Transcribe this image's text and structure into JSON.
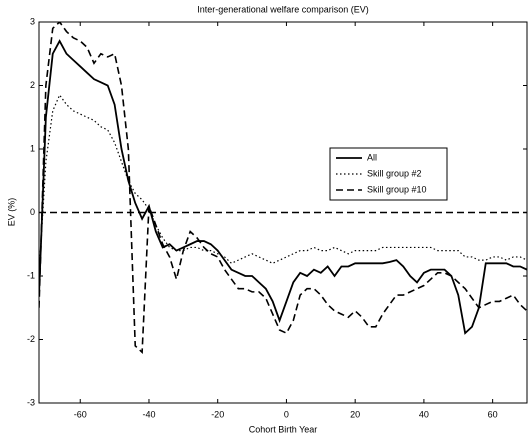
{
  "chart_data": {
    "type": "line",
    "title": "Inter-generational welfare comparison (EV)",
    "xlabel": "Cohort Birth Year",
    "ylabel": "EV (%)",
    "x": [
      -72,
      -70,
      -68,
      -66,
      -64,
      -62,
      -60,
      -58,
      -56,
      -54,
      -52,
      -50,
      -48,
      -46,
      -44,
      -42,
      -40,
      -38,
      -36,
      -34,
      -32,
      -30,
      -28,
      -26,
      -24,
      -22,
      -20,
      -18,
      -16,
      -14,
      -12,
      -10,
      -8,
      -6,
      -4,
      -2,
      0,
      2,
      4,
      6,
      8,
      10,
      12,
      14,
      16,
      18,
      20,
      22,
      24,
      26,
      28,
      30,
      32,
      34,
      36,
      38,
      40,
      42,
      44,
      46,
      48,
      50,
      52,
      54,
      56,
      58,
      60,
      62,
      64,
      66,
      68,
      70
    ],
    "series": [
      {
        "name": "All",
        "color": "#000000",
        "dash": "solid",
        "values": [
          -1.3,
          1.5,
          2.5,
          2.7,
          2.5,
          2.4,
          2.3,
          2.2,
          2.1,
          2.05,
          2.0,
          1.7,
          1.0,
          0.5,
          0.15,
          -0.1,
          0.1,
          -0.3,
          -0.55,
          -0.5,
          -0.6,
          -0.55,
          -0.5,
          -0.45,
          -0.45,
          -0.5,
          -0.6,
          -0.75,
          -0.9,
          -0.95,
          -1.0,
          -1.0,
          -1.1,
          -1.2,
          -1.4,
          -1.7,
          -1.4,
          -1.1,
          -0.95,
          -1.0,
          -0.9,
          -0.95,
          -0.85,
          -1.0,
          -0.85,
          -0.85,
          -0.8,
          -0.8,
          -0.8,
          -0.8,
          -0.8,
          -0.78,
          -0.75,
          -0.85,
          -1.0,
          -1.1,
          -0.95,
          -0.9,
          -0.9,
          -0.9,
          -1.0,
          -1.3,
          -1.9,
          -1.8,
          -1.5,
          -0.8,
          -0.8,
          -0.8,
          -0.8,
          -0.85,
          -0.85,
          -0.9
        ]
      },
      {
        "name": "Skill group #2",
        "color": "#000000",
        "dash": "dotted",
        "values": [
          -1.0,
          0.8,
          1.6,
          1.85,
          1.7,
          1.6,
          1.55,
          1.5,
          1.45,
          1.35,
          1.3,
          1.1,
          0.8,
          0.5,
          0.3,
          0.2,
          0.05,
          -0.2,
          -0.4,
          -0.55,
          -0.6,
          -0.6,
          -0.55,
          -0.55,
          -0.6,
          -0.6,
          -0.65,
          -0.7,
          -0.8,
          -0.75,
          -0.7,
          -0.65,
          -0.7,
          -0.75,
          -0.8,
          -0.75,
          -0.7,
          -0.65,
          -0.6,
          -0.6,
          -0.55,
          -0.6,
          -0.6,
          -0.55,
          -0.6,
          -0.65,
          -0.6,
          -0.6,
          -0.6,
          -0.6,
          -0.55,
          -0.55,
          -0.55,
          -0.55,
          -0.55,
          -0.55,
          -0.55,
          -0.55,
          -0.6,
          -0.6,
          -0.6,
          -0.6,
          -0.7,
          -0.7,
          -0.75,
          -0.75,
          -0.7,
          -0.7,
          -0.75,
          -0.7,
          -0.7,
          -0.75
        ]
      },
      {
        "name": "Skill group #10",
        "color": "#000000",
        "dash": "dashed",
        "values": [
          -1.5,
          2.0,
          2.9,
          3.0,
          2.85,
          2.75,
          2.7,
          2.6,
          2.35,
          2.5,
          2.45,
          2.5,
          2.0,
          1.0,
          -2.1,
          -2.2,
          0.1,
          -0.2,
          -0.5,
          -0.7,
          -1.05,
          -0.6,
          -0.3,
          -0.4,
          -0.55,
          -0.65,
          -0.7,
          -0.9,
          -1.05,
          -1.2,
          -1.2,
          -1.25,
          -1.25,
          -1.35,
          -1.6,
          -1.85,
          -1.9,
          -1.7,
          -1.3,
          -1.2,
          -1.2,
          -1.3,
          -1.45,
          -1.55,
          -1.6,
          -1.65,
          -1.55,
          -1.65,
          -1.8,
          -1.8,
          -1.6,
          -1.45,
          -1.3,
          -1.3,
          -1.25,
          -1.2,
          -1.15,
          -1.05,
          -0.95,
          -0.95,
          -1.0,
          -1.1,
          -1.2,
          -1.35,
          -1.5,
          -1.45,
          -1.4,
          -1.4,
          -1.35,
          -1.3,
          -1.45,
          -1.55
        ]
      }
    ],
    "reference_y": 0,
    "xlim": [
      -72,
      70
    ],
    "xticks": [
      -60,
      -40,
      -20,
      0,
      20,
      40,
      60
    ],
    "ylim": [
      -3,
      3
    ],
    "yticks": [
      -3,
      -2,
      -1,
      0,
      1,
      2,
      3
    ],
    "legend": "east"
  }
}
